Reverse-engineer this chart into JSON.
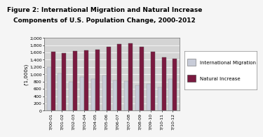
{
  "title_line1": "Figure 2: International Migration and Natural Increase",
  "title_line2": "Components of U.S. Population Change, 2000-2012",
  "categories": [
    "7/00-01",
    "7/01-02",
    "7/02-03",
    "7/03-04",
    "7/04-05",
    "7/05-06",
    "7/06-07",
    "7/07-08",
    "7/08-09",
    "7/09-10",
    "7/10-11",
    "7/10-12"
  ],
  "international_migration": [
    1200,
    1020,
    800,
    920,
    880,
    960,
    840,
    820,
    700,
    730,
    650,
    870
  ],
  "natural_increase": [
    1620,
    1580,
    1640,
    1660,
    1680,
    1750,
    1840,
    1850,
    1760,
    1620,
    1470,
    1430
  ],
  "ylim": [
    0,
    2000
  ],
  "yticks": [
    0,
    200,
    400,
    600,
    800,
    1000,
    1200,
    1400,
    1600,
    1800,
    2000
  ],
  "ylabel": "('1,000s)",
  "bar_color_migration": "#c8ccd8",
  "bar_color_natural": "#7b1a40",
  "bar_width": 0.38,
  "legend_migration": "International Migration",
  "legend_natural": "Natural Increase",
  "chart_bg": "#d4d4d4",
  "fig_bg": "#f5f5f5",
  "title_fontsize": 6.5,
  "tick_fontsize": 4.5,
  "ylabel_fontsize": 5,
  "legend_fontsize": 5
}
